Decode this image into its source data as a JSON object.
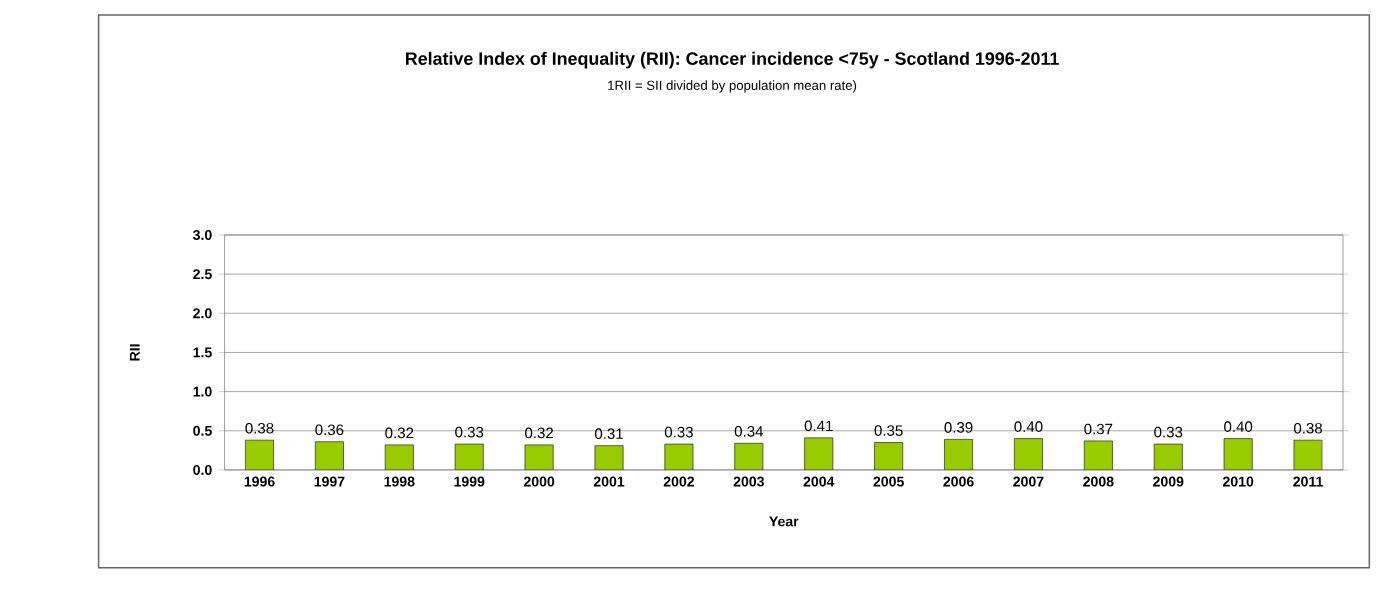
{
  "chart_data": {
    "type": "bar",
    "title": "Relative Index of Inequality (RII): Cancer incidence <75y - Scotland 1996-2011",
    "subtitle": "1RII = SII divided by population mean rate)",
    "xlabel": "Year",
    "ylabel": "RII",
    "categories": [
      "1996",
      "1997",
      "1998",
      "1999",
      "2000",
      "2001",
      "2002",
      "2003",
      "2004",
      "2005",
      "2006",
      "2007",
      "2008",
      "2009",
      "2010",
      "2011"
    ],
    "values": [
      0.38,
      0.36,
      0.32,
      0.33,
      0.32,
      0.31,
      0.33,
      0.34,
      0.41,
      0.35,
      0.39,
      0.4,
      0.37,
      0.33,
      0.4,
      0.38
    ],
    "color": "#99cc00",
    "ylim": [
      0,
      3.0
    ],
    "yticks": [
      {
        "value": 0,
        "label": "0.0"
      },
      {
        "value": 0.5,
        "label": "0.5"
      },
      {
        "value": 1.0,
        "label": "1.0"
      },
      {
        "value": 1.5,
        "label": "1.5"
      },
      {
        "value": 2.0,
        "label": "2.0"
      },
      {
        "value": 2.5,
        "label": "2.5"
      },
      {
        "value": 3.0,
        "label": "3.0"
      }
    ],
    "grid": "y",
    "value_labels": [
      "0.38",
      "0.36",
      "0.32",
      "0.33",
      "0.32",
      "0.31",
      "0.33",
      "0.34",
      "0.41",
      "0.35",
      "0.39",
      "0.40",
      "0.37",
      "0.33",
      "0.40",
      "0.38"
    ]
  }
}
